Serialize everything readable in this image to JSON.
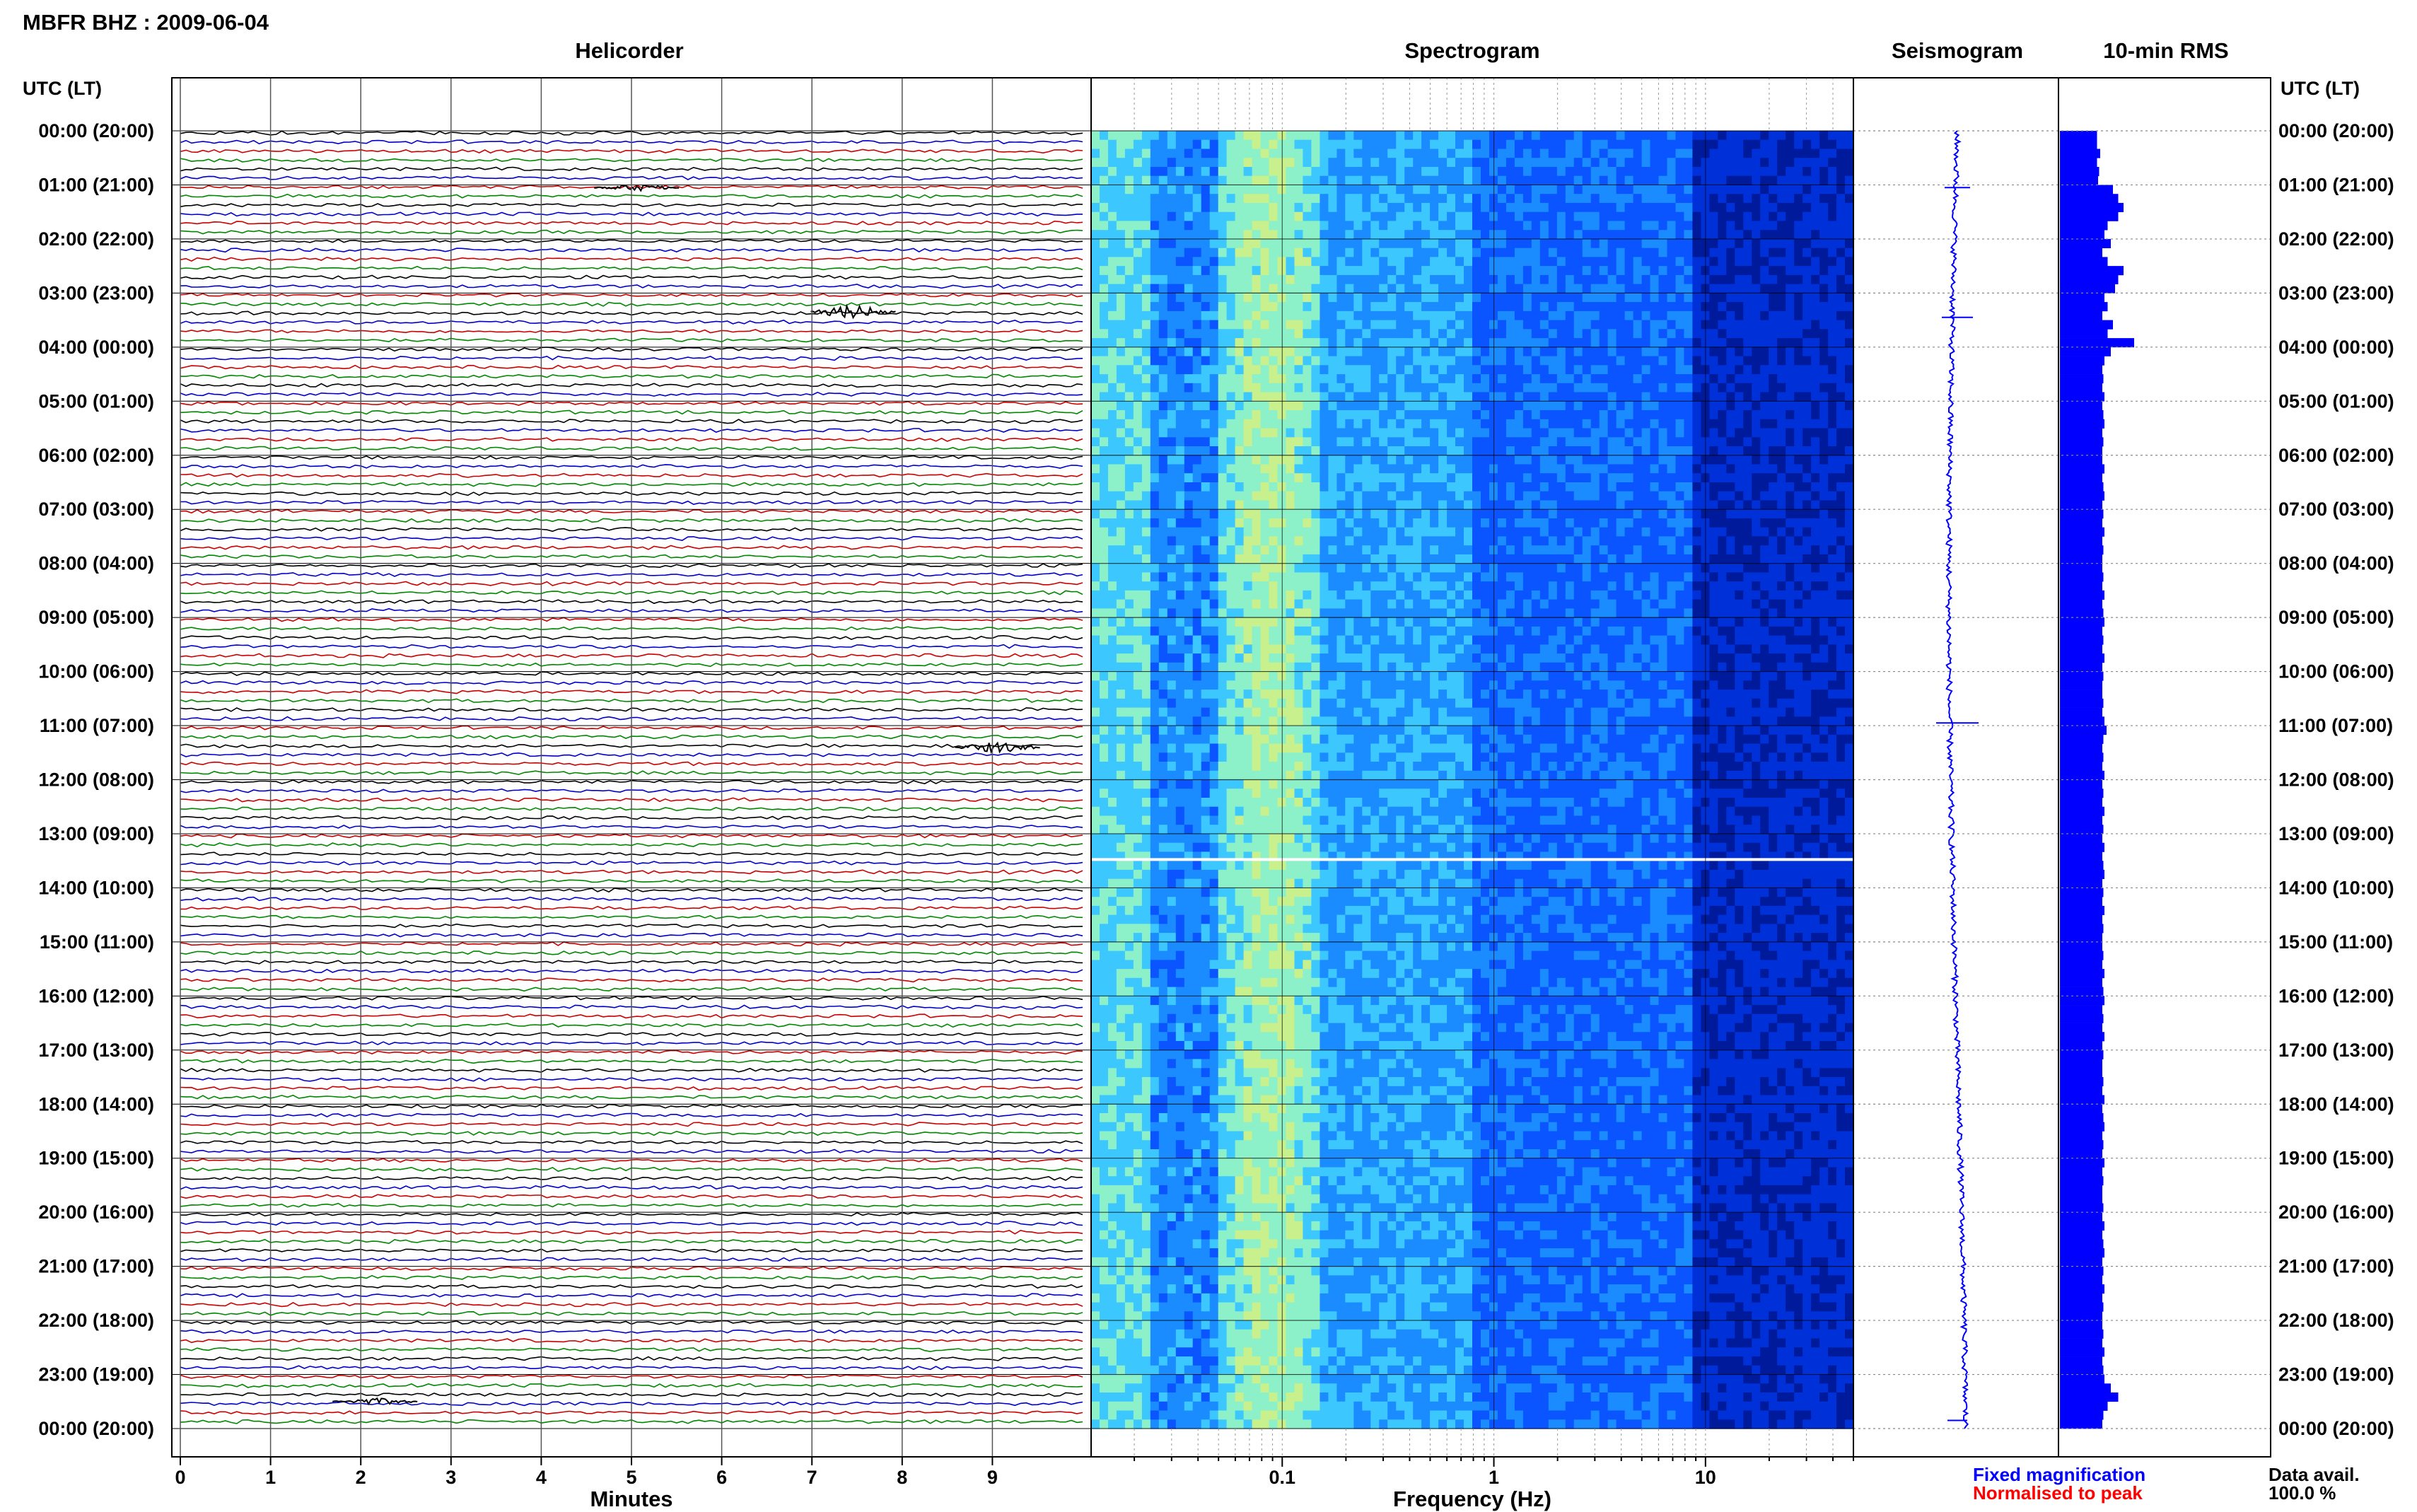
{
  "title": "MBFR BHZ : 2009-06-04",
  "panels": {
    "helicorder": "Helicorder",
    "spectrogram": "Spectrogram",
    "seismogram": "Seismogram",
    "rms": "10-min RMS"
  },
  "axis": {
    "time_header_left": "UTC (LT)",
    "time_header_right": "UTC (LT)",
    "minutes_label": "Minutes",
    "frequency_label": "Frequency (Hz)"
  },
  "legend": {
    "fixed": "Fixed magnification",
    "normalised": "Normalised to peak",
    "fixed_color": "#0000ff",
    "normalised_color": "#ff0000"
  },
  "data_avail": {
    "label": "Data avail.",
    "value": "100.0 %"
  },
  "chart_data": {
    "type": "heatmap",
    "time_labels": [
      "00:00 (20:00)",
      "01:00 (21:00)",
      "02:00 (22:00)",
      "03:00 (23:00)",
      "04:00 (00:00)",
      "05:00 (01:00)",
      "06:00 (02:00)",
      "07:00 (03:00)",
      "08:00 (04:00)",
      "09:00 (05:00)",
      "10:00 (06:00)",
      "11:00 (07:00)",
      "12:00 (08:00)",
      "13:00 (09:00)",
      "14:00 (10:00)",
      "15:00 (11:00)",
      "16:00 (12:00)",
      "17:00 (13:00)",
      "18:00 (14:00)",
      "19:00 (15:00)",
      "20:00 (16:00)",
      "21:00 (17:00)",
      "22:00 (18:00)",
      "23:00 (19:00)",
      "00:00 (20:00)"
    ],
    "minute_ticks": [
      "0",
      "1",
      "2",
      "3",
      "4",
      "5",
      "6",
      "7",
      "8",
      "9"
    ],
    "frequency_ticks": [
      "0.1",
      "1",
      "10"
    ],
    "frequency_range": [
      0.0125,
      50
    ],
    "trace_colors": [
      "#000000",
      "#0000cc",
      "#cc0000",
      "#008800"
    ],
    "spectrogram_colors": [
      "#001a9c",
      "#0030d8",
      "#0a55ff",
      "#1a8cff",
      "#3cc8ff",
      "#8cf0c8",
      "#c8f08c"
    ],
    "rms_per_10min": [
      0.35,
      0.35,
      0.38,
      0.35,
      0.37,
      0.36,
      0.5,
      0.55,
      0.6,
      0.55,
      0.45,
      0.42,
      0.48,
      0.4,
      0.45,
      0.6,
      0.55,
      0.52,
      0.42,
      0.45,
      0.4,
      0.5,
      0.45,
      0.7,
      0.48,
      0.42,
      0.4,
      0.41,
      0.4,
      0.42,
      0.4,
      0.41,
      0.42,
      0.4,
      0.41,
      0.4,
      0.4,
      0.42,
      0.4,
      0.41,
      0.42,
      0.4,
      0.41,
      0.4,
      0.42,
      0.4,
      0.41,
      0.4,
      0.4,
      0.41,
      0.4,
      0.42,
      0.4,
      0.41,
      0.42,
      0.4,
      0.41,
      0.4,
      0.42,
      0.4,
      0.41,
      0.4,
      0.4,
      0.41,
      0.4,
      0.42,
      0.44,
      0.41,
      0.4,
      0.41,
      0.4,
      0.42,
      0.4,
      0.41,
      0.4,
      0.42,
      0.4,
      0.41,
      0.4,
      0.42,
      0.4,
      0.41,
      0.42,
      0.4,
      0.41,
      0.4,
      0.42,
      0.4,
      0.41,
      0.4,
      0.4,
      0.41,
      0.4,
      0.42,
      0.4,
      0.41,
      0.42,
      0.4,
      0.41,
      0.4,
      0.42,
      0.4,
      0.41,
      0.4,
      0.4,
      0.41,
      0.4,
      0.42,
      0.4,
      0.41,
      0.42,
      0.4,
      0.41,
      0.4,
      0.42,
      0.4,
      0.41,
      0.4,
      0.4,
      0.41,
      0.4,
      0.42,
      0.4,
      0.41,
      0.42,
      0.4,
      0.41,
      0.4,
      0.42,
      0.4,
      0.41,
      0.4,
      0.4,
      0.41,
      0.4,
      0.42,
      0.4,
      0.41,
      0.42,
      0.48,
      0.55,
      0.45,
      0.41,
      0.4
    ]
  }
}
